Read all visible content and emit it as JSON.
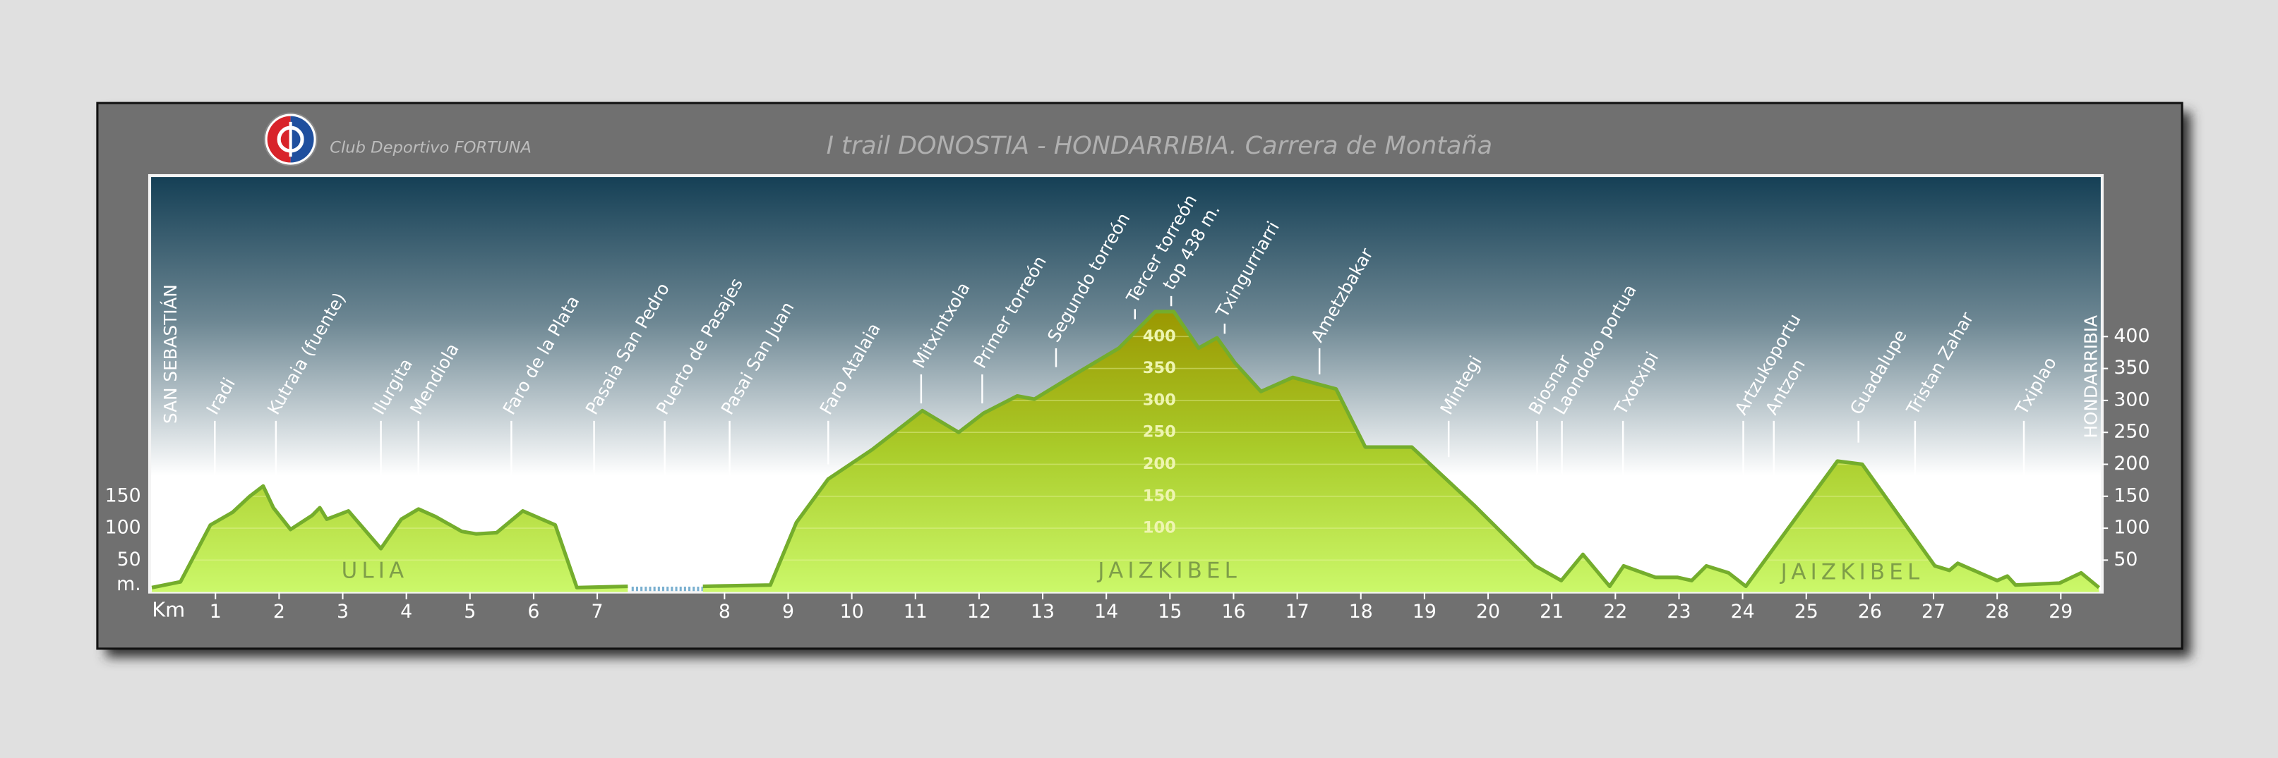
{
  "chart_data": {
    "type": "area",
    "title": "I  trail DONOSTIA - HONDARRIBIA. Carrera de Montaña",
    "logo_text": "Club Deportivo FORTUNA",
    "x_label": "Km",
    "y_label": "m.",
    "start_label": "SAN SEBASTIÁN",
    "end_label": "HONDARRIBIA",
    "color": "#74ad2c",
    "x": [
      0,
      0.45,
      0.92,
      1.27,
      1.54,
      1.75,
      1.91,
      2.18,
      2.52,
      2.64,
      2.75,
      3.09,
      3.6,
      3.92,
      4.19,
      4.46,
      4.87,
      5.1,
      5.42,
      5.83,
      6.34,
      6.68,
      7.24,
      7.5,
      7.83,
      8.72,
      9.13,
      9.63,
      10.32,
      11.11,
      11.68,
      12.07,
      12.6,
      12.87,
      13.51,
      14.2,
      14.77,
      15.06,
      15.45,
      15.74,
      16.02,
      16.43,
      16.93,
      17.61,
      18.07,
      18.8,
      19.78,
      20.74,
      21.15,
      21.49,
      21.91,
      22.13,
      22.63,
      22.98,
      23.2,
      23.43,
      23.78,
      24.05,
      25.49,
      25.88,
      27.02,
      27.25,
      27.38,
      28.0,
      28.16,
      28.29,
      28.98,
      29.32,
      29.6
    ],
    "values": [
      7,
      16,
      105,
      125,
      150,
      166,
      132,
      98,
      120,
      132,
      114,
      127,
      68,
      114,
      130,
      118,
      95,
      91,
      93,
      127,
      105,
      7,
      9,
      null,
      9,
      11,
      109,
      177,
      223,
      284,
      250,
      280,
      307,
      302,
      341,
      382,
      439,
      439,
      382,
      398,
      359,
      314,
      336,
      318,
      227,
      227,
      136,
      41,
      18,
      59,
      9,
      41,
      23,
      23,
      18,
      41,
      30,
      9,
      205,
      200,
      41,
      34,
      45,
      18,
      25,
      11,
      14,
      30,
      7
    ],
    "ferry": {
      "x": [
        7.27,
        7.83
      ],
      "values": [
        5,
        5
      ]
    },
    "xlim": [
      0,
      29.66
    ],
    "xticks": [
      1,
      2,
      3,
      4,
      5,
      6,
      7,
      8,
      9,
      10,
      11,
      12,
      13,
      14,
      15,
      16,
      17,
      18,
      19,
      20,
      21,
      22,
      23,
      24,
      25,
      26,
      27,
      28,
      29
    ],
    "axis_break": [
      7,
      8
    ],
    "ylim": [
      0,
      652
    ],
    "yticks": [
      50,
      100,
      150,
      200,
      250,
      300,
      350,
      400
    ],
    "yticks_left": [
      50,
      100,
      150
    ],
    "yticks_center": [
      100,
      150,
      200,
      250,
      300,
      350,
      400
    ],
    "grid": true,
    "waypoints": [
      {
        "label": "Iradi",
        "km": 0.99
      },
      {
        "label": "Kutraia (fuente)",
        "km": 1.95
      },
      {
        "label": "Ilurgita",
        "km": 3.6
      },
      {
        "label": "Mendiola",
        "km": 4.19
      },
      {
        "label": "Faro de la Plata",
        "km": 5.65
      },
      {
        "label": "Pasaia San Pedro",
        "km": 6.95
      },
      {
        "label": "Puerto de Pasajes",
        "km": 7.53
      },
      {
        "label": "Pasai San Juan",
        "km": 8.08
      },
      {
        "label": "Faro Atalaia",
        "km": 9.63
      },
      {
        "label": "Mitxintxola",
        "km": 11.09
      },
      {
        "label": "Primer torreón",
        "km": 12.05
      },
      {
        "label": "Segundo torreón",
        "km": 13.21
      },
      {
        "label": "Tercer torreón",
        "km": 14.45
      },
      {
        "label": "top 438 m.",
        "km": 15.02
      },
      {
        "label": "Txingurriarri",
        "km": 15.86
      },
      {
        "label": "Ametzbakar",
        "km": 17.35
      },
      {
        "label": "Mintegi",
        "km": 19.38
      },
      {
        "label": "Biosnar",
        "km": 20.77
      },
      {
        "label": "Laondoko portua",
        "km": 21.16
      },
      {
        "label": "Txotxipi",
        "km": 22.12
      },
      {
        "label": "Artzukoportu",
        "km": 24.01
      },
      {
        "label": "Antzon",
        "km": 24.49
      },
      {
        "label": "Guadalupe",
        "km": 25.82
      },
      {
        "label": "Tristan Zahar",
        "km": 26.71
      },
      {
        "label": "Txiplao",
        "km": 28.42
      }
    ],
    "regions": [
      "ULIA",
      "JAIZKIBEL",
      "JAIZKIBEL"
    ]
  }
}
